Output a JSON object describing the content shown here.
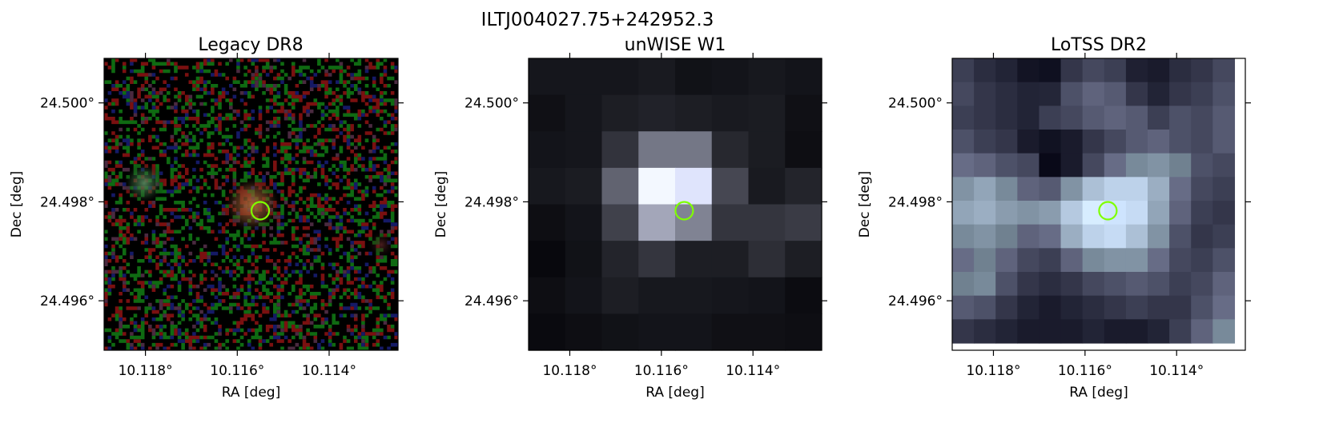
{
  "figure": {
    "title": "ILTJ004027.75+242952.3"
  },
  "marker": {
    "color": "#7fff00",
    "ra": 10.1155,
    "dec": 24.49782
  },
  "axes_common": {
    "xlabel": "RA [deg]",
    "ylabel": "Dec [deg]",
    "x_ticks": [
      {
        "value": 10.118,
        "label": "10.118°"
      },
      {
        "value": 10.116,
        "label": "10.116°"
      },
      {
        "value": 10.114,
        "label": "10.114°"
      }
    ],
    "y_ticks": [
      {
        "value": 24.5,
        "label": "24.500°"
      },
      {
        "value": 24.498,
        "label": "24.498°"
      },
      {
        "value": 24.496,
        "label": "24.496°"
      }
    ],
    "ra_range": [
      10.1189,
      10.1125
    ],
    "dec_range": [
      24.495,
      24.5009
    ]
  },
  "panels": [
    {
      "title": "Legacy DR8",
      "kind": "optical-rgb-noise"
    },
    {
      "title": "unWISE W1",
      "kind": "infrared-grayscale"
    },
    {
      "title": "LoTSS DR2",
      "kind": "radio-bone"
    }
  ]
}
